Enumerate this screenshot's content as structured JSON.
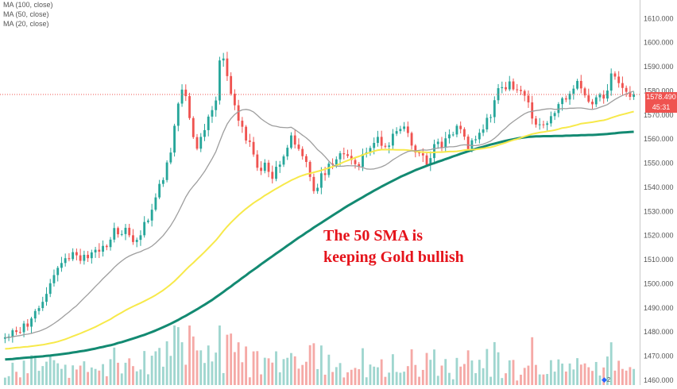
{
  "legend": [
    {
      "label": "MA (100, close)"
    },
    {
      "label": "MA (50, close)"
    },
    {
      "label": "MA (20, close)"
    }
  ],
  "annotation": [
    "The 50 SMA is",
    "keeping Gold bullish"
  ],
  "last_price_label": "1578.490",
  "countdown_label": "45:31",
  "footer_badge": "2",
  "colors": {
    "up": "#26a69a",
    "down": "#ef5350",
    "ma100": "#138a72",
    "ma50": "#f7e94a",
    "ma20": "#9e9e9e",
    "annotation": "#e5131b",
    "last_price_line": "#ef5350"
  },
  "chart_data": {
    "type": "candlestick",
    "ylim": [
      1458,
      1617
    ],
    "y_ticks": [
      1460,
      1470,
      1480,
      1490,
      1500,
      1510,
      1520,
      1530,
      1540,
      1550,
      1560,
      1570,
      1580,
      1590,
      1600,
      1610
    ],
    "close": [
      1477.8,
      1478.1,
      1480.7,
      1480.0,
      1479.9,
      1483.5,
      1482.2,
      1485.6,
      1488.7,
      1489.9,
      1492.5,
      1495.8,
      1500.2,
      1503.6,
      1506.6,
      1508.6,
      1510.6,
      1510.2,
      1513.1,
      1511.8,
      1509.5,
      1512.0,
      1510.6,
      1513.0,
      1514.1,
      1513.3,
      1515.7,
      1515.2,
      1518.3,
      1523.1,
      1520.5,
      1520.6,
      1523.2,
      1520.1,
      1517.3,
      1518.2,
      1520.1,
      1525.6,
      1526.2,
      1530.7,
      1535.8,
      1541.4,
      1543.0,
      1550.3,
      1554.4,
      1565.5,
      1574.7,
      1580.5,
      1577.8,
      1568.7,
      1560.8,
      1556.0,
      1560.9,
      1563.7,
      1569.3,
      1572.0,
      1576.0,
      1592.6,
      1593.4,
      1586.1,
      1578.8,
      1574.0,
      1567.6,
      1565.1,
      1559.4,
      1558.8,
      1553.6,
      1548.1,
      1546.8,
      1550.2,
      1546.4,
      1543.5,
      1548.5,
      1549.4,
      1552.8,
      1556.4,
      1561.5,
      1557.7,
      1555.9,
      1552.9,
      1550.5,
      1544.3,
      1538.4,
      1539.8,
      1545.8,
      1545.1,
      1549.8,
      1549.4,
      1551.6,
      1554.1,
      1553.7,
      1553.0,
      1551.3,
      1549.6,
      1548.5,
      1553.8,
      1554.5,
      1556.3,
      1558.4,
      1560.9,
      1557.2,
      1556.8,
      1557.3,
      1562.2,
      1563.3,
      1564.2,
      1565.2,
      1562.5,
      1557.3,
      1554.4,
      1554.1,
      1553.2,
      1549.2,
      1552.1,
      1557.9,
      1558.9,
      1556.4,
      1560.3,
      1561.9,
      1561.9,
      1565.5,
      1564.1,
      1561.0,
      1555.8,
      1559.5,
      1559.9,
      1562.6,
      1564.0,
      1568.8,
      1569.1,
      1576.1,
      1581.1,
      1581.5,
      1580.6,
      1583.9,
      1580.6,
      1580.4,
      1579.9,
      1578.0,
      1575.2,
      1568.5,
      1566.0,
      1566.1,
      1565.9,
      1566.5,
      1569.5,
      1570.8,
      1574.5,
      1576.9,
      1576.4,
      1578.8,
      1580.9,
      1584.1,
      1581.0,
      1578.1,
      1575.5,
      1574.4,
      1577.3,
      1578.4,
      1576.8,
      1580.1,
      1587.2,
      1585.9,
      1583.2,
      1581.2,
      1579.6,
      1577.5,
      1578.5
    ],
    "ma20": [
      1477.7,
      1477.7,
      1478.0,
      1478.3,
      1478.5,
      1478.9,
      1479.1,
      1479.4,
      1479.9,
      1480.3,
      1480.9,
      1481.6,
      1482.5,
      1483.5,
      1484.6,
      1485.8,
      1487.1,
      1488.3,
      1489.7,
      1490.9,
      1492.5,
      1494.1,
      1495.6,
      1497.2,
      1498.9,
      1500.4,
      1502.1,
      1503.6,
      1505.1,
      1506.8,
      1508.2,
      1509.5,
      1510.6,
      1511.5,
      1512.2,
      1512.8,
      1513.3,
      1514.1,
      1514.7,
      1515.6,
      1516.9,
      1518.4,
      1520.0,
      1522.0,
      1524.1,
      1526.7,
      1529.6,
      1532.8,
      1536.0,
      1538.5,
      1540.5,
      1542.3,
      1544.4,
      1546.6,
      1549.2,
      1551.9,
      1554.8,
      1558.9,
      1562.9,
      1566.2,
      1568.5,
      1570.2,
      1571.4,
      1572.1,
      1572.3,
      1572.0,
      1571.2,
      1569.9,
      1568.4,
      1567.3,
      1566.3,
      1565.5,
      1565.3,
      1564.9,
      1564.8,
      1564.7,
      1564.9,
      1563.9,
      1562.8,
      1561.6,
      1560.5,
      1559.1,
      1557.4,
      1555.6,
      1554.3,
      1552.7,
      1550.9,
      1549.3,
      1548.8,
      1548.7,
      1548.8,
      1549.0,
      1548.9,
      1548.9,
      1548.6,
      1548.2,
      1547.6,
      1547.5,
      1547.6,
      1548.0,
      1548.5,
      1549.2,
      1550.2,
      1551.4,
      1552.3,
      1553.3,
      1554.1,
      1554.8,
      1555.1,
      1555.1,
      1555.3,
      1555.5,
      1555.4,
      1555.6,
      1556.0,
      1556.3,
      1556.4,
      1556.6,
      1556.8,
      1556.8,
      1557.0,
      1557.4,
      1557.6,
      1557.5,
      1557.3,
      1557.3,
      1557.5,
      1557.9,
      1558.5,
      1559.2,
      1560.3,
      1561.7,
      1563.3,
      1564.6,
      1566.1,
      1567.3,
      1568.4,
      1569.5,
      1570.5,
      1571.2,
      1571.5,
      1571.8,
      1572.0,
      1572.3,
      1572.5,
      1572.6,
      1572.3,
      1572.4,
      1572.7,
      1572.6,
      1572.8,
      1572.8,
      1572.9,
      1572.9,
      1572.7,
      1572.4,
      1572.3,
      1572.6,
      1573.2,
      1573.7,
      1574.3,
      1575.4,
      1576.4,
      1577.3,
      1578.1,
      1578.7,
      1579.3,
      1579.9
    ],
    "ma50": [
      1473.0,
      1473.1,
      1473.3,
      1473.5,
      1473.6,
      1473.8,
      1473.9,
      1474.1,
      1474.3,
      1474.5,
      1474.7,
      1475.0,
      1475.3,
      1475.6,
      1476.0,
      1476.5,
      1477.0,
      1477.6,
      1478.2,
      1478.8,
      1479.4,
      1480.1,
      1480.7,
      1481.4,
      1482.1,
      1482.9,
      1483.7,
      1484.5,
      1485.3,
      1486.3,
      1487.2,
      1488.1,
      1489.0,
      1489.8,
      1490.6,
      1491.3,
      1492.0,
      1492.8,
      1493.6,
      1494.4,
      1495.3,
      1496.3,
      1497.3,
      1498.5,
      1499.7,
      1501.1,
      1502.6,
      1504.2,
      1505.8,
      1507.3,
      1508.7,
      1510.2,
      1511.7,
      1513.2,
      1514.8,
      1516.4,
      1518.0,
      1519.9,
      1521.9,
      1523.7,
      1525.4,
      1526.9,
      1528.4,
      1529.8,
      1531.1,
      1532.3,
      1533.5,
      1534.5,
      1535.5,
      1536.6,
      1537.5,
      1538.5,
      1539.4,
      1540.3,
      1541.2,
      1542.0,
      1542.9,
      1543.6,
      1544.3,
      1544.9,
      1545.4,
      1545.8,
      1546.2,
      1546.6,
      1547.0,
      1547.5,
      1548.0,
      1548.5,
      1549.1,
      1549.8,
      1550.5,
      1551.1,
      1551.7,
      1552.3,
      1552.8,
      1553.4,
      1554.0,
      1554.5,
      1555.0,
      1555.4,
      1555.6,
      1555.6,
      1555.6,
      1555.6,
      1555.5,
      1555.5,
      1555.5,
      1555.4,
      1555.2,
      1554.9,
      1554.7,
      1554.6,
      1554.5,
      1554.4,
      1554.5,
      1554.6,
      1554.6,
      1554.7,
      1554.8,
      1554.8,
      1554.9,
      1555.1,
      1555.4,
      1555.5,
      1555.6,
      1555.7,
      1555.9,
      1556.1,
      1556.4,
      1556.6,
      1557.0,
      1557.5,
      1558.0,
      1558.5,
      1559.1,
      1559.6,
      1560.0,
      1560.5,
      1561.1,
      1561.6,
      1562.1,
      1562.4,
      1562.7,
      1562.9,
      1563.2,
      1563.4,
      1563.7,
      1564.1,
      1564.6,
      1564.8,
      1565.1,
      1565.5,
      1565.9,
      1566.4,
      1566.6,
      1566.8,
      1567.0,
      1567.3,
      1567.6,
      1567.8,
      1568.2,
      1568.8,
      1569.3,
      1569.8,
      1570.2,
      1570.6,
      1571.0,
      1571.4
    ],
    "ma100": [
      1468.6,
      1468.7,
      1468.8,
      1469.0,
      1469.1,
      1469.3,
      1469.4,
      1469.5,
      1469.7,
      1469.8,
      1469.9,
      1470.1,
      1470.2,
      1470.4,
      1470.6,
      1470.8,
      1471.0,
      1471.2,
      1471.5,
      1471.7,
      1472.0,
      1472.2,
      1472.5,
      1472.8,
      1473.1,
      1473.5,
      1473.8,
      1474.2,
      1474.5,
      1474.9,
      1475.4,
      1475.8,
      1476.3,
      1476.8,
      1477.3,
      1477.8,
      1478.3,
      1478.8,
      1479.4,
      1480.0,
      1480.6,
      1481.3,
      1482.0,
      1482.7,
      1483.4,
      1484.2,
      1485.0,
      1485.9,
      1486.7,
      1487.6,
      1488.5,
      1489.4,
      1490.4,
      1491.3,
      1492.3,
      1493.3,
      1494.4,
      1495.5,
      1496.6,
      1497.8,
      1498.9,
      1500.1,
      1501.2,
      1502.4,
      1503.5,
      1504.7,
      1505.8,
      1506.9,
      1508.1,
      1509.2,
      1510.3,
      1511.4,
      1512.5,
      1513.6,
      1514.7,
      1515.8,
      1516.9,
      1518.0,
      1519.1,
      1520.1,
      1521.2,
      1522.2,
      1523.3,
      1524.3,
      1525.3,
      1526.3,
      1527.3,
      1528.3,
      1529.3,
      1530.3,
      1531.3,
      1532.3,
      1533.2,
      1534.1,
      1535.0,
      1535.9,
      1536.8,
      1537.7,
      1538.6,
      1539.4,
      1540.3,
      1541.1,
      1541.9,
      1542.7,
      1543.5,
      1544.3,
      1545.0,
      1545.7,
      1546.4,
      1547.1,
      1547.7,
      1548.3,
      1548.9,
      1549.5,
      1550.0,
      1550.6,
      1551.1,
      1551.7,
      1552.2,
      1552.8,
      1553.3,
      1553.9,
      1554.4,
      1554.9,
      1555.4,
      1555.9,
      1556.4,
      1556.8,
      1557.3,
      1557.7,
      1558.1,
      1558.5,
      1558.9,
      1559.3,
      1559.6,
      1559.9,
      1560.2,
      1560.5,
      1560.7,
      1560.9,
      1561.0,
      1561.1,
      1561.1,
      1561.2,
      1561.2,
      1561.2,
      1561.3,
      1561.3,
      1561.3,
      1561.4,
      1561.4,
      1561.5,
      1561.5,
      1561.6,
      1561.6,
      1561.7,
      1561.7,
      1561.8,
      1561.9,
      1562.0,
      1562.1,
      1562.3,
      1562.4,
      1562.6,
      1562.7,
      1562.8,
      1562.9,
      1563.0
    ],
    "last_price": 1578.49
  }
}
